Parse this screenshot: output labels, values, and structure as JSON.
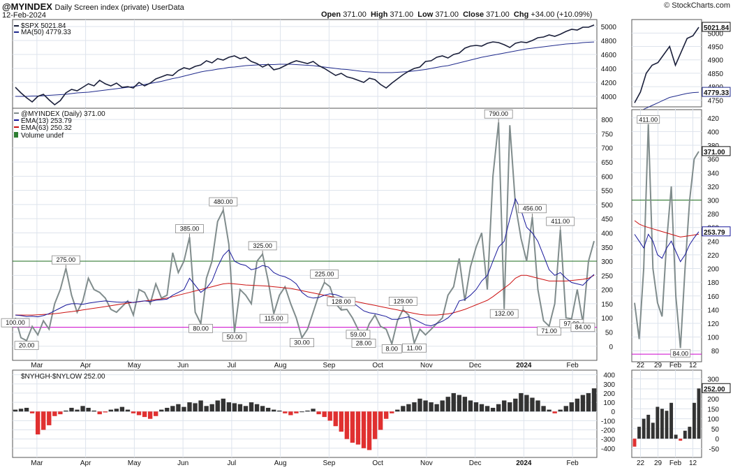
{
  "header": {
    "symbol": "@MYINDEX",
    "description": "Daily Screen index (private)",
    "source": "UserData",
    "date": "12-Feb-2024",
    "open_label": "Open",
    "open": "371.00",
    "high_label": "High",
    "high": "371.00",
    "low_label": "Low",
    "low": "371.00",
    "close_label": "Close",
    "close": "371.00",
    "chg_label": "Chg",
    "chg": "+34.00 (+10.09%)",
    "credit": "© StockCharts.com"
  },
  "colors": {
    "price": "#1a1f3a",
    "ma": "#1f2a8c",
    "index": "#808c8c",
    "ema13": "#16169a",
    "ema63": "#cc1111",
    "volume": "#2e7d32",
    "green_line": "#1b6b1b",
    "magenta_line": "#cc00cc",
    "pos_bar": "#333333",
    "neg_bar": "#e03030"
  },
  "chart_data": [
    {
      "panel": "spx",
      "type": "line",
      "legend": [
        "$SPX 5021.84",
        "MA(50) 4779.33"
      ],
      "y_ticks": [
        "4000",
        "4200",
        "4400",
        "4600",
        "4800",
        "5000"
      ],
      "ylim": [
        3870,
        5060
      ],
      "last_value_label": "5021.84",
      "ma_value_label": "4779.33",
      "series": [
        {
          "name": "$SPX",
          "values": [
            4130,
            4050,
            3980,
            3920,
            4000,
            4030,
            3950,
            3880,
            3940,
            4050,
            4100,
            4080,
            4130,
            4180,
            4150,
            4230,
            4180,
            4150,
            4190,
            4130,
            4140,
            4120,
            4200,
            4150,
            4190,
            4250,
            4280,
            4310,
            4300,
            4370,
            4410,
            4390,
            4430,
            4450,
            4510,
            4480,
            4540,
            4520,
            4560,
            4580,
            4540,
            4560,
            4500,
            4470,
            4420,
            4460,
            4380,
            4400,
            4440,
            4480,
            4510,
            4490,
            4470,
            4500,
            4440,
            4400,
            4350,
            4300,
            4330,
            4280,
            4260,
            4230,
            4200,
            4260,
            4240,
            4170,
            4120,
            4190,
            4250,
            4310,
            4360,
            4400,
            4420,
            4500,
            4510,
            4560,
            4580,
            4550,
            4600,
            4620,
            4690,
            4720,
            4730,
            4720,
            4760,
            4780,
            4770,
            4740,
            4700,
            4760,
            4780,
            4770,
            4800,
            4840,
            4850,
            4880,
            4860,
            4890,
            4930,
            4960,
            4950,
            4990,
            4990,
            5021.84
          ]
        },
        {
          "name": "MA(50)",
          "values": [
            4000,
            4000,
            4000,
            4005,
            4005,
            4010,
            4015,
            4020,
            4025,
            4030,
            4040,
            4050,
            4055,
            4060,
            4070,
            4080,
            4090,
            4100,
            4110,
            4120,
            4130,
            4140,
            4155,
            4170,
            4185,
            4200,
            4215,
            4235,
            4255,
            4270,
            4290,
            4310,
            4330,
            4350,
            4365,
            4375,
            4390,
            4400,
            4415,
            4420,
            4430,
            4440,
            4445,
            4450,
            4455,
            4455,
            4455,
            4460,
            4460,
            4460,
            4455,
            4450,
            4445,
            4440,
            4430,
            4420,
            4410,
            4400,
            4390,
            4385,
            4375,
            4365,
            4355,
            4350,
            4345,
            4340,
            4340,
            4340,
            4345,
            4350,
            4355,
            4365,
            4375,
            4385,
            4400,
            4415,
            4430,
            4440,
            4460,
            4480,
            4500,
            4520,
            4540,
            4560,
            4575,
            4590,
            4605,
            4620,
            4635,
            4650,
            4665,
            4680,
            4690,
            4700,
            4710,
            4720,
            4730,
            4740,
            4750,
            4755,
            4760,
            4770,
            4775,
            4779.33
          ]
        }
      ]
    },
    {
      "panel": "myindex",
      "type": "line",
      "legend": [
        "@MYINDEX (Daily) 371.00",
        "EMA(13) 253.79",
        "EMA(63) 250.32",
        "Volume undef"
      ],
      "y_ticks": [
        "0",
        "50",
        "100",
        "150",
        "200",
        "250",
        "300",
        "350",
        "400",
        "450",
        "500",
        "550",
        "600",
        "650",
        "700",
        "750",
        "800"
      ],
      "ylim": [
        -40,
        830
      ],
      "x_labels": [
        "Mar",
        "Apr",
        "May",
        "Jun",
        "Jul",
        "Aug",
        "Sep",
        "Oct",
        "Nov",
        "Dec",
        "2024",
        "Feb"
      ],
      "hlines": [
        300,
        67
      ],
      "last_value_label": "371.00",
      "ema13_value_label": "253.79",
      "series": [
        {
          "name": "@MYINDEX",
          "values": [
            100,
            30,
            20,
            70,
            40,
            90,
            60,
            150,
            200,
            275,
            180,
            120,
            160,
            240,
            200,
            190,
            170,
            130,
            120,
            140,
            160,
            110,
            200,
            190,
            150,
            220,
            170,
            180,
            330,
            260,
            300,
            385,
            120,
            80,
            240,
            300,
            440,
            480,
            360,
            50,
            200,
            180,
            150,
            300,
            325,
            230,
            115,
            180,
            210,
            150,
            100,
            30,
            60,
            120,
            180,
            225,
            210,
            150,
            128,
            130,
            100,
            59,
            28,
            80,
            110,
            70,
            60,
            8,
            90,
            129,
            110,
            11,
            60,
            40,
            60,
            80,
            100,
            180,
            210,
            310,
            160,
            280,
            350,
            400,
            200,
            600,
            790,
            132,
            780,
            500,
            380,
            300,
            456,
            200,
            90,
            71,
            150,
            411,
            100,
            97,
            200,
            84,
            300,
            371
          ]
        },
        {
          "name": "EMA(13)",
          "values": [
            110,
            108,
            105,
            106,
            104,
            108,
            115,
            125,
            135,
            145,
            150,
            150,
            148,
            152,
            155,
            158,
            160,
            158,
            156,
            155,
            157,
            154,
            158,
            160,
            158,
            162,
            164,
            166,
            180,
            190,
            200,
            240,
            215,
            190,
            205,
            230,
            280,
            320,
            340,
            300,
            290,
            285,
            270,
            275,
            285,
            280,
            260,
            250,
            245,
            235,
            220,
            190,
            175,
            170,
            172,
            180,
            185,
            182,
            175,
            168,
            155,
            140,
            125,
            118,
            115,
            110,
            105,
            95,
            95,
            100,
            104,
            95,
            85,
            75,
            72,
            80,
            88,
            100,
            120,
            160,
            165,
            180,
            200,
            230,
            250,
            300,
            350,
            370,
            450,
            520,
            480,
            420,
            400,
            370,
            320,
            270,
            250,
            260,
            240,
            225,
            220,
            215,
            235,
            253.79
          ]
        },
        {
          "name": "EMA(63)",
          "values": [
            110,
            110,
            110,
            110,
            111,
            112,
            113,
            115,
            117,
            120,
            122,
            125,
            128,
            131,
            134,
            137,
            140,
            143,
            146,
            149,
            152,
            155,
            157,
            160,
            162,
            165,
            167,
            170,
            175,
            180,
            185,
            190,
            195,
            200,
            205,
            210,
            215,
            220,
            222,
            220,
            218,
            216,
            215,
            214,
            213,
            212,
            210,
            208,
            206,
            204,
            200,
            196,
            192,
            188,
            184,
            180,
            176,
            172,
            168,
            164,
            160,
            156,
            152,
            148,
            144,
            140,
            136,
            132,
            128,
            124,
            120,
            116,
            112,
            110,
            110,
            110,
            112,
            114,
            118,
            124,
            130,
            138,
            146,
            154,
            162,
            175,
            190,
            205,
            220,
            240,
            250,
            250,
            245,
            240,
            235,
            230,
            230,
            230,
            230,
            232,
            234,
            236,
            240,
            250.32
          ]
        }
      ]
    },
    {
      "panel": "nyhgh",
      "type": "bar",
      "legend": [
        "$NYHGH-$NYLOW 252.00"
      ],
      "y_ticks": [
        "-400",
        "-300",
        "-200",
        "-100",
        "0",
        "100",
        "200",
        "300",
        "400"
      ],
      "ylim": [
        -470,
        420
      ],
      "x_labels": [
        "Mar",
        "Apr",
        "May",
        "Jun",
        "Jul",
        "Aug",
        "Sep",
        "Oct",
        "Nov",
        "Dec",
        "2024",
        "Feb"
      ],
      "last_value_label": "252.00",
      "values": [
        20,
        30,
        40,
        -20,
        -250,
        -200,
        -150,
        -50,
        -30,
        10,
        40,
        20,
        60,
        40,
        10,
        -30,
        -10,
        20,
        30,
        50,
        20,
        -20,
        -40,
        -60,
        -80,
        -50,
        20,
        40,
        60,
        80,
        50,
        100,
        90,
        120,
        60,
        80,
        120,
        140,
        100,
        90,
        80,
        60,
        100,
        80,
        60,
        40,
        20,
        10,
        -20,
        -40,
        -20,
        0,
        10,
        30,
        -30,
        -60,
        -100,
        -160,
        -220,
        -300,
        -340,
        -360,
        -400,
        -420,
        -300,
        -200,
        -80,
        -20,
        20,
        60,
        80,
        100,
        140,
        120,
        100,
        80,
        120,
        160,
        200,
        180,
        160,
        120,
        100,
        80,
        60,
        40,
        80,
        120,
        100,
        140,
        200,
        180,
        150,
        120,
        60,
        20,
        -20,
        20,
        60,
        100,
        140,
        180,
        200,
        252
      ]
    },
    {
      "panel": "zoom-myindex",
      "type": "line",
      "y_ticks": [
        "80",
        "100",
        "120",
        "140",
        "160",
        "180",
        "200",
        "220",
        "240",
        "260",
        "280",
        "300",
        "320",
        "340",
        "360",
        "380",
        "400",
        "420"
      ],
      "ylim": [
        70,
        430
      ],
      "x_labels": [
        "22",
        "29",
        "Feb",
        "12"
      ],
      "peak_label": "411.00",
      "low_label": "84.00",
      "last_value_label": "371.00",
      "ema13_value_label": "253.79",
      "values": [
        150,
        97,
        200,
        411,
        200,
        150,
        130,
        240,
        320,
        160,
        84,
        200,
        300,
        360,
        371
      ],
      "ema13": [
        250,
        240,
        230,
        250,
        240,
        220,
        215,
        230,
        240,
        225,
        210,
        220,
        235,
        245,
        253.79
      ],
      "ema63": [
        270,
        265,
        262,
        260,
        258,
        256,
        254,
        252,
        250,
        248,
        246,
        247,
        248,
        249,
        250.32
      ]
    },
    {
      "panel": "zoom-spx",
      "type": "line",
      "y_ticks": [
        "4750",
        "4800",
        "4850",
        "4900",
        "4950",
        "5000"
      ],
      "ylim": [
        4730,
        5040
      ],
      "last_value_label": "5021.84",
      "ma_value_label": "4779.33",
      "values": [
        4740,
        4780,
        4850,
        4880,
        4890,
        4920,
        4950,
        4880,
        4930,
        4980,
        4990,
        5021.84
      ],
      "ma": [
        4700,
        4710,
        4720,
        4730,
        4740,
        4750,
        4760,
        4765,
        4770,
        4775,
        4778,
        4779.33
      ]
    },
    {
      "panel": "zoom-nyhgh",
      "type": "bar",
      "y_ticks": [
        "-50",
        "0",
        "50",
        "100",
        "150",
        "200",
        "250",
        "300"
      ],
      "ylim": [
        -80,
        330
      ],
      "x_labels": [
        "22",
        "29",
        "Feb",
        "12"
      ],
      "last_value_label": "252.00",
      "values": [
        -40,
        60,
        100,
        120,
        80,
        160,
        150,
        140,
        180,
        20,
        -10,
        40,
        60,
        180,
        252
      ]
    }
  ]
}
